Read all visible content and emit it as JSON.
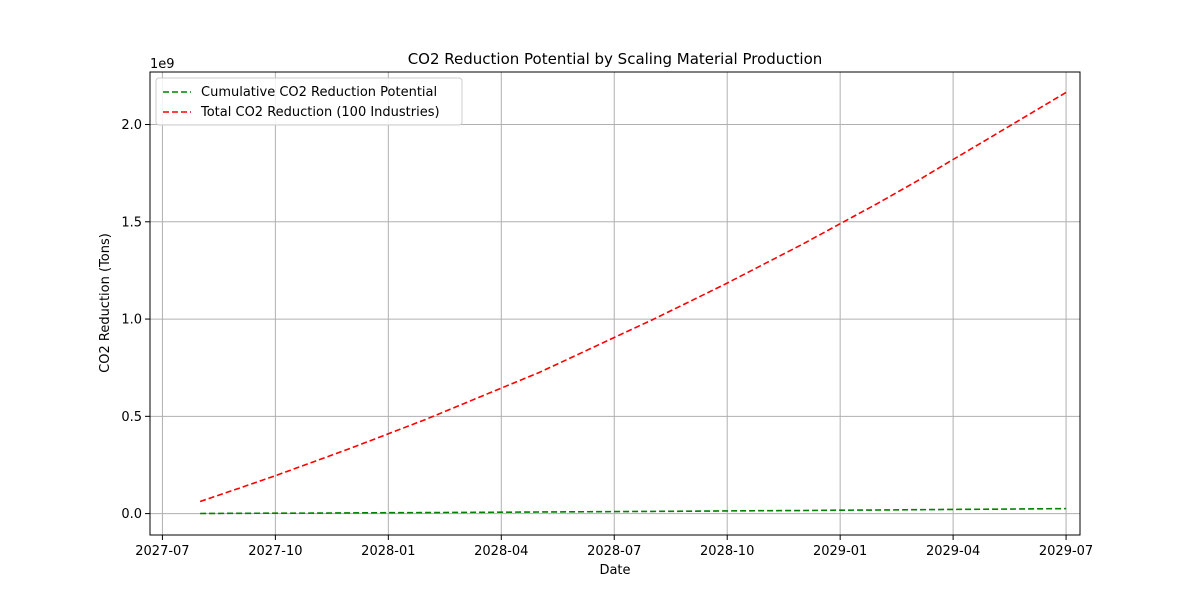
{
  "chart_data": {
    "type": "line",
    "title": "CO2 Reduction Potential by Scaling Material Production",
    "xlabel": "Date",
    "ylabel": "CO2 Reduction (Tons)",
    "y_multiplier_label": "1e9",
    "x_ticks": [
      "2027-07",
      "2027-10",
      "2028-01",
      "2028-04",
      "2028-07",
      "2028-10",
      "2029-01",
      "2029-04",
      "2029-07"
    ],
    "y_ticks": [
      "0.0",
      "0.5",
      "1.0",
      "1.5",
      "2.0"
    ],
    "y_tick_values": [
      0.0,
      0.5,
      1.0,
      1.5,
      2.0
    ],
    "ylim": [
      -0.11,
      2.27
    ],
    "x_months": [
      "2027-08",
      "2027-09",
      "2027-10",
      "2027-11",
      "2027-12",
      "2028-01",
      "2028-02",
      "2028-03",
      "2028-04",
      "2028-05",
      "2028-06",
      "2028-07",
      "2028-08",
      "2028-09",
      "2028-10",
      "2028-11",
      "2028-12",
      "2029-01",
      "2029-02",
      "2029-03",
      "2029-04",
      "2029-05",
      "2029-06",
      "2029-07"
    ],
    "grid": true,
    "legend_position": "upper-left",
    "series": [
      {
        "name": "Cumulative CO2 Reduction Potential",
        "color": "#008000",
        "style": "dashed",
        "values": [
          0.0006,
          0.0013,
          0.002,
          0.0028,
          0.0036,
          0.0044,
          0.0053,
          0.0062,
          0.0072,
          0.0082,
          0.0092,
          0.0103,
          0.0114,
          0.0125,
          0.0137,
          0.0149,
          0.0161,
          0.0174,
          0.0187,
          0.02,
          0.0214,
          0.0228,
          0.0242,
          0.0256
        ]
      },
      {
        "name": "Total CO2 Reduction (100 Industries)",
        "color": "#ff0000",
        "style": "dashed",
        "values": [
          0.062,
          0.128,
          0.195,
          0.265,
          0.336,
          0.41,
          0.485,
          0.565,
          0.645,
          0.725,
          0.815,
          0.905,
          0.995,
          1.09,
          1.185,
          1.285,
          1.385,
          1.49,
          1.595,
          1.705,
          1.82,
          1.935,
          2.05,
          2.165
        ]
      }
    ]
  }
}
